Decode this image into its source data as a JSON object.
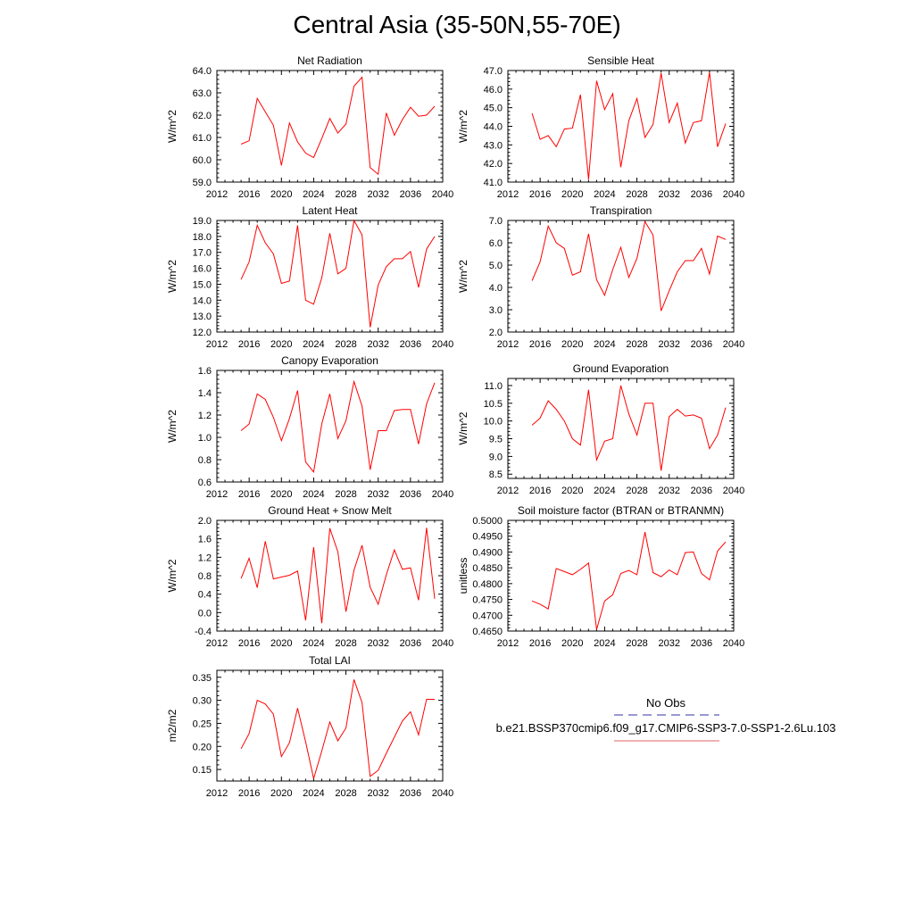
{
  "title": "Central Asia (35-50N,55-70E)",
  "legend": {
    "entries": [
      {
        "label": "No Obs",
        "color": "#3333aa",
        "style": "dashed"
      },
      {
        "label": "b.e21.BSSP370cmip6.f09_g17.CMIP6-SSP3-7.0-SSP1-2.6Lu.103",
        "color": "#e06060",
        "style": "solid"
      }
    ]
  },
  "chart_data": [
    {
      "type": "line",
      "title": "Net Radiation",
      "ylabel": "W/m^2",
      "xlim": [
        2012,
        2040
      ],
      "x_ticks": [
        2012,
        2016,
        2020,
        2024,
        2028,
        2032,
        2036,
        2040
      ],
      "y_ticks": [
        "59.0",
        "60.0",
        "61.0",
        "62.0",
        "63.0",
        "64.0"
      ],
      "ylim": [
        59,
        64
      ],
      "series": [
        {
          "color": "#ff0000",
          "x": [
            2015,
            2016,
            2017,
            2018,
            2019,
            2020,
            2021,
            2022,
            2023,
            2024,
            2025,
            2026,
            2027,
            2028,
            2029,
            2030,
            2031,
            2032,
            2033,
            2034,
            2035,
            2036,
            2037,
            2038,
            2039
          ],
          "values": [
            60.7,
            60.85,
            62.75,
            62.15,
            61.55,
            59.75,
            61.65,
            60.8,
            60.3,
            60.1,
            60.95,
            61.85,
            61.2,
            61.6,
            63.3,
            63.7,
            59.65,
            59.35,
            62.1,
            61.1,
            61.8,
            62.35,
            61.95,
            62.0,
            62.4
          ]
        }
      ]
    },
    {
      "type": "line",
      "title": "Sensible Heat",
      "ylabel": "W/m^2",
      "xlim": [
        2012,
        2040
      ],
      "x_ticks": [
        2012,
        2016,
        2020,
        2024,
        2028,
        2032,
        2036,
        2040
      ],
      "y_ticks": [
        "41.0",
        "42.0",
        "43.0",
        "44.0",
        "45.0",
        "46.0",
        "47.0"
      ],
      "ylim": [
        41,
        47
      ],
      "series": [
        {
          "color": "#ff0000",
          "x": [
            2015,
            2016,
            2017,
            2018,
            2019,
            2020,
            2021,
            2022,
            2023,
            2024,
            2025,
            2026,
            2027,
            2028,
            2029,
            2030,
            2031,
            2032,
            2033,
            2034,
            2035,
            2036,
            2037,
            2038,
            2039
          ],
          "values": [
            44.7,
            43.3,
            43.5,
            42.9,
            43.85,
            43.9,
            45.7,
            41.15,
            46.45,
            44.9,
            45.75,
            41.8,
            44.3,
            45.5,
            43.4,
            44.1,
            46.85,
            44.2,
            45.25,
            43.1,
            44.2,
            44.3,
            46.9,
            42.9,
            44.15
          ]
        }
      ]
    },
    {
      "type": "line",
      "title": "Latent Heat",
      "ylabel": "W/m^2",
      "xlim": [
        2012,
        2040
      ],
      "x_ticks": [
        2012,
        2016,
        2020,
        2024,
        2028,
        2032,
        2036,
        2040
      ],
      "y_ticks": [
        "12.0",
        "13.0",
        "14.0",
        "15.0",
        "16.0",
        "17.0",
        "18.0",
        "19.0"
      ],
      "ylim": [
        12,
        19
      ],
      "series": [
        {
          "color": "#ff0000",
          "x": [
            2015,
            2016,
            2017,
            2018,
            2019,
            2020,
            2021,
            2022,
            2023,
            2024,
            2025,
            2026,
            2027,
            2028,
            2029,
            2030,
            2031,
            2032,
            2033,
            2034,
            2035,
            2036,
            2037,
            2038,
            2039
          ],
          "values": [
            15.3,
            16.4,
            18.7,
            17.6,
            16.9,
            15.05,
            15.2,
            18.7,
            14.0,
            13.75,
            15.4,
            18.2,
            15.65,
            16.0,
            19.0,
            18.1,
            12.3,
            14.95,
            16.1,
            16.6,
            16.6,
            17.05,
            14.8,
            17.2,
            18.0
          ]
        }
      ]
    },
    {
      "type": "line",
      "title": "Transpiration",
      "ylabel": "W/m^2",
      "xlim": [
        2012,
        2040
      ],
      "x_ticks": [
        2012,
        2016,
        2020,
        2024,
        2028,
        2032,
        2036,
        2040
      ],
      "y_ticks": [
        "2.0",
        "3.0",
        "4.0",
        "5.0",
        "6.0",
        "7.0"
      ],
      "ylim": [
        2,
        7
      ],
      "series": [
        {
          "color": "#ff0000",
          "x": [
            2015,
            2016,
            2017,
            2018,
            2019,
            2020,
            2021,
            2022,
            2023,
            2024,
            2025,
            2026,
            2027,
            2028,
            2029,
            2030,
            2031,
            2032,
            2033,
            2034,
            2035,
            2036,
            2037,
            2038,
            2039
          ],
          "values": [
            4.3,
            5.15,
            6.75,
            6.0,
            5.75,
            4.55,
            4.7,
            6.4,
            4.35,
            3.65,
            4.8,
            5.8,
            4.45,
            5.3,
            6.95,
            6.35,
            2.95,
            3.85,
            4.7,
            5.2,
            5.2,
            5.75,
            4.6,
            6.3,
            6.15
          ]
        }
      ]
    },
    {
      "type": "line",
      "title": "Canopy Evaporation",
      "ylabel": "W/m^2",
      "xlim": [
        2012,
        2040
      ],
      "x_ticks": [
        2012,
        2016,
        2020,
        2024,
        2028,
        2032,
        2036,
        2040
      ],
      "y_ticks": [
        "0.6",
        "0.8",
        "1.0",
        "1.2",
        "1.4",
        "1.6"
      ],
      "ylim": [
        0.6,
        1.6
      ],
      "series": [
        {
          "color": "#ff0000",
          "x": [
            2015,
            2016,
            2017,
            2018,
            2019,
            2020,
            2021,
            2022,
            2023,
            2024,
            2025,
            2026,
            2027,
            2028,
            2029,
            2030,
            2031,
            2032,
            2033,
            2034,
            2035,
            2036,
            2037,
            2038,
            2039
          ],
          "values": [
            1.06,
            1.12,
            1.39,
            1.34,
            1.18,
            0.97,
            1.17,
            1.42,
            0.78,
            0.69,
            1.12,
            1.39,
            0.99,
            1.15,
            1.5,
            1.28,
            0.71,
            1.06,
            1.06,
            1.24,
            1.25,
            1.25,
            0.94,
            1.3,
            1.49
          ]
        }
      ]
    },
    {
      "type": "line",
      "title": "Ground Evaporation",
      "ylabel": "W/m^2",
      "xlim": [
        2012,
        2040
      ],
      "x_ticks": [
        2012,
        2016,
        2020,
        2024,
        2028,
        2032,
        2036,
        2040
      ],
      "y_ticks": [
        "8.5",
        "9.0",
        "9.5",
        "10.0",
        "10.5",
        "11.0"
      ],
      "ylim": [
        8.38,
        11.2
      ],
      "series": [
        {
          "color": "#ff0000",
          "x": [
            2015,
            2016,
            2017,
            2018,
            2019,
            2020,
            2021,
            2022,
            2023,
            2024,
            2025,
            2026,
            2027,
            2028,
            2029,
            2030,
            2031,
            2032,
            2033,
            2034,
            2035,
            2036,
            2037,
            2038,
            2039
          ],
          "values": [
            9.88,
            10.08,
            10.57,
            10.33,
            10.0,
            9.5,
            9.32,
            10.88,
            8.9,
            9.43,
            9.5,
            11.0,
            10.2,
            9.6,
            10.5,
            10.5,
            8.6,
            10.12,
            10.33,
            10.14,
            10.17,
            10.08,
            9.22,
            9.6,
            10.38
          ]
        }
      ]
    },
    {
      "type": "line",
      "title": "Ground Heat + Snow Melt",
      "ylabel": "W/m^2",
      "xlim": [
        2012,
        2040
      ],
      "x_ticks": [
        2012,
        2016,
        2020,
        2024,
        2028,
        2032,
        2036,
        2040
      ],
      "y_ticks": [
        "-0.4",
        "0.0",
        "0.4",
        "0.8",
        "1.2",
        "1.6",
        "2.0"
      ],
      "ylim": [
        -0.4,
        2.0
      ],
      "series": [
        {
          "color": "#ff0000",
          "x": [
            2015,
            2016,
            2017,
            2018,
            2019,
            2020,
            2021,
            2022,
            2023,
            2024,
            2025,
            2026,
            2027,
            2028,
            2029,
            2030,
            2031,
            2032,
            2033,
            2034,
            2035,
            2036,
            2037,
            2038,
            2039
          ],
          "values": [
            0.74,
            1.18,
            0.54,
            1.55,
            0.73,
            0.77,
            0.81,
            0.9,
            -0.17,
            1.42,
            -0.23,
            1.83,
            1.32,
            0.02,
            0.92,
            1.46,
            0.55,
            0.18,
            0.82,
            1.36,
            0.94,
            0.97,
            0.27,
            1.84,
            0.3
          ]
        }
      ]
    },
    {
      "type": "line",
      "title": "Soil moisture factor (BTRAN or BTRANMN)",
      "ylabel": "unitless",
      "xlim": [
        2012,
        2040
      ],
      "x_ticks": [
        2012,
        2016,
        2020,
        2024,
        2028,
        2032,
        2036,
        2040
      ],
      "y_ticks": [
        "0.4650",
        "0.4700",
        "0.4750",
        "0.4800",
        "0.4850",
        "0.4900",
        "0.4950",
        "0.5000"
      ],
      "ylim": [
        0.465,
        0.5
      ],
      "series": [
        {
          "color": "#ff0000",
          "x": [
            2015,
            2016,
            2017,
            2018,
            2019,
            2020,
            2021,
            2022,
            2023,
            2024,
            2025,
            2026,
            2027,
            2028,
            2029,
            2030,
            2031,
            2032,
            2033,
            2034,
            2035,
            2036,
            2037,
            2038,
            2039
          ],
          "values": [
            0.4745,
            0.4735,
            0.472,
            0.4848,
            0.4838,
            0.4828,
            0.4845,
            0.4865,
            0.4655,
            0.4745,
            0.4765,
            0.4832,
            0.4842,
            0.4828,
            0.4963,
            0.4835,
            0.4822,
            0.4843,
            0.4828,
            0.4898,
            0.49,
            0.4832,
            0.4812,
            0.4903,
            0.4932
          ]
        }
      ]
    },
    {
      "type": "line",
      "title": "Total LAI",
      "ylabel": "m2/m2",
      "xlim": [
        2012,
        2040
      ],
      "x_ticks": [
        2012,
        2016,
        2020,
        2024,
        2028,
        2032,
        2036,
        2040
      ],
      "y_ticks": [
        "0.15",
        "0.20",
        "0.25",
        "0.30",
        "0.35"
      ],
      "ylim": [
        0.125,
        0.365
      ],
      "series": [
        {
          "color": "#ff0000",
          "x": [
            2015,
            2016,
            2017,
            2018,
            2019,
            2020,
            2021,
            2022,
            2023,
            2024,
            2025,
            2026,
            2027,
            2028,
            2029,
            2030,
            2031,
            2032,
            2033,
            2034,
            2035,
            2036,
            2037,
            2038,
            2039
          ],
          "values": [
            0.195,
            0.228,
            0.3,
            0.292,
            0.27,
            0.178,
            0.208,
            0.283,
            0.21,
            0.13,
            0.19,
            0.253,
            0.212,
            0.24,
            0.345,
            0.295,
            0.135,
            0.148,
            0.185,
            0.22,
            0.255,
            0.275,
            0.225,
            0.302,
            0.302
          ]
        }
      ]
    }
  ]
}
